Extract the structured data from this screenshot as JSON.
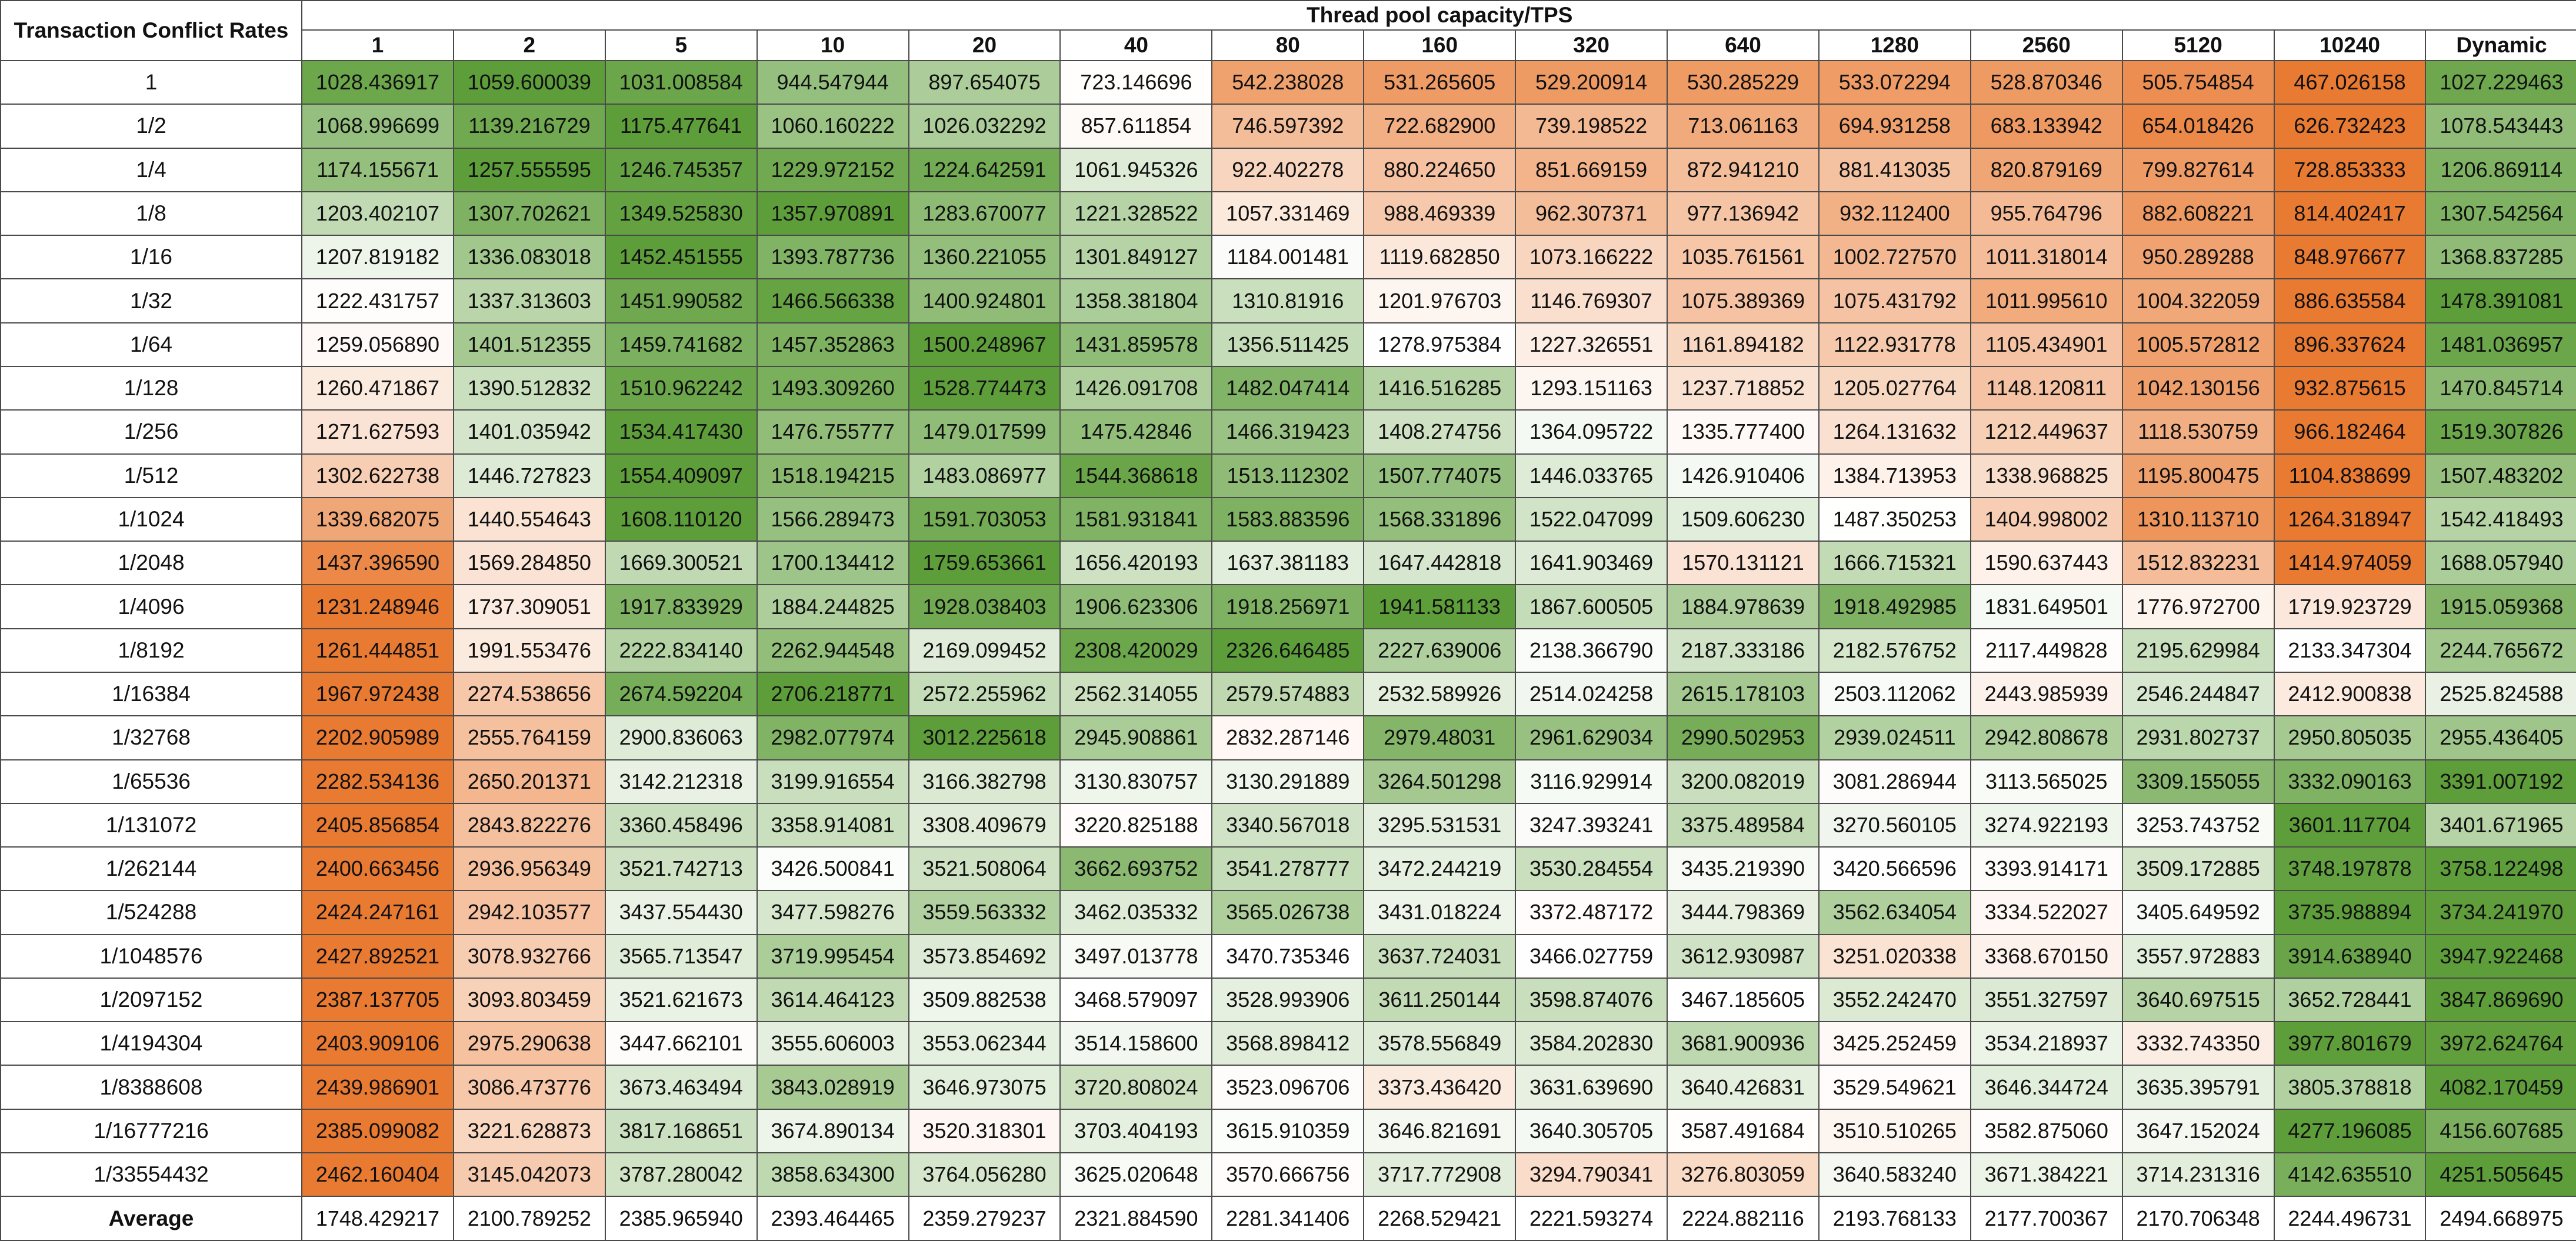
{
  "chart_data": {
    "type": "heatmap",
    "title": "",
    "row_header": "Transaction Conflict Rates",
    "col_header": "Thread pool capacity/TPS",
    "columns": [
      "1",
      "2",
      "5",
      "10",
      "20",
      "40",
      "80",
      "160",
      "320",
      "640",
      "1280",
      "2560",
      "5120",
      "10240",
      "Dynamic"
    ],
    "colors": {
      "green": "#5e9e3a",
      "orange": "#e97a32",
      "white": "#ffffff"
    },
    "rows": [
      {
        "label": "1",
        "values": [
          "1028.436917",
          "1059.600039",
          "1031.008584",
          "944.547944",
          "897.654075",
          "723.146696",
          "542.238028",
          "531.265605",
          "529.200914",
          "530.285229",
          "533.072294",
          "528.870346",
          "505.754854",
          "467.026158",
          "1027.229463"
        ]
      },
      {
        "label": "1/2",
        "values": [
          "1068.996699",
          "1139.216729",
          "1175.477641",
          "1060.160222",
          "1026.032292",
          "857.611854",
          "746.597392",
          "722.682900",
          "739.198522",
          "713.061163",
          "694.931258",
          "683.133942",
          "654.018426",
          "626.732423",
          "1078.543443"
        ]
      },
      {
        "label": "1/4",
        "values": [
          "1174.155671",
          "1257.555595",
          "1246.745357",
          "1229.972152",
          "1224.642591",
          "1061.945326",
          "922.402278",
          "880.224650",
          "851.669159",
          "872.941210",
          "881.413035",
          "820.879169",
          "799.827614",
          "728.853333",
          "1206.869114"
        ]
      },
      {
        "label": "1/8",
        "values": [
          "1203.402107",
          "1307.702621",
          "1349.525830",
          "1357.970891",
          "1283.670077",
          "1221.328522",
          "1057.331469",
          "988.469339",
          "962.307371",
          "977.136942",
          "932.112400",
          "955.764796",
          "882.608221",
          "814.402417",
          "1307.542564"
        ]
      },
      {
        "label": "1/16",
        "values": [
          "1207.819182",
          "1336.083018",
          "1452.451555",
          "1393.787736",
          "1360.221055",
          "1301.849127",
          "1184.001481",
          "1119.682850",
          "1073.166222",
          "1035.761561",
          "1002.727570",
          "1011.318014",
          "950.289288",
          "848.976677",
          "1368.837285"
        ]
      },
      {
        "label": "1/32",
        "values": [
          "1222.431757",
          "1337.313603",
          "1451.990582",
          "1466.566338",
          "1400.924801",
          "1358.381804",
          "1310.81916",
          "1201.976703",
          "1146.769307",
          "1075.389369",
          "1075.431792",
          "1011.995610",
          "1004.322059",
          "886.635584",
          "1478.391081"
        ]
      },
      {
        "label": "1/64",
        "values": [
          "1259.056890",
          "1401.512355",
          "1459.741682",
          "1457.352863",
          "1500.248967",
          "1431.859578",
          "1356.511425",
          "1278.975384",
          "1227.326551",
          "1161.894182",
          "1122.931778",
          "1105.434901",
          "1005.572812",
          "896.337624",
          "1481.036957"
        ]
      },
      {
        "label": "1/128",
        "values": [
          "1260.471867",
          "1390.512832",
          "1510.962242",
          "1493.309260",
          "1528.774473",
          "1426.091708",
          "1482.047414",
          "1416.516285",
          "1293.151163",
          "1237.718852",
          "1205.027764",
          "1148.120811",
          "1042.130156",
          "932.875615",
          "1470.845714"
        ]
      },
      {
        "label": "1/256",
        "values": [
          "1271.627593",
          "1401.035942",
          "1534.417430",
          "1476.755777",
          "1479.017599",
          "1475.42846",
          "1466.319423",
          "1408.274756",
          "1364.095722",
          "1335.777400",
          "1264.131632",
          "1212.449637",
          "1118.530759",
          "966.182464",
          "1519.307826"
        ]
      },
      {
        "label": "1/512",
        "values": [
          "1302.622738",
          "1446.727823",
          "1554.409097",
          "1518.194215",
          "1483.086977",
          "1544.368618",
          "1513.112302",
          "1507.774075",
          "1446.033765",
          "1426.910406",
          "1384.713953",
          "1338.968825",
          "1195.800475",
          "1104.838699",
          "1507.483202"
        ]
      },
      {
        "label": "1/1024",
        "values": [
          "1339.682075",
          "1440.554643",
          "1608.110120",
          "1566.289473",
          "1591.703053",
          "1581.931841",
          "1583.883596",
          "1568.331896",
          "1522.047099",
          "1509.606230",
          "1487.350253",
          "1404.998002",
          "1310.113710",
          "1264.318947",
          "1542.418493"
        ]
      },
      {
        "label": "1/2048",
        "values": [
          "1437.396590",
          "1569.284850",
          "1669.300521",
          "1700.134412",
          "1759.653661",
          "1656.420193",
          "1637.381183",
          "1647.442818",
          "1641.903469",
          "1570.131121",
          "1666.715321",
          "1590.637443",
          "1512.832231",
          "1414.974059",
          "1688.057940"
        ]
      },
      {
        "label": "1/4096",
        "values": [
          "1231.248946",
          "1737.309051",
          "1917.833929",
          "1884.244825",
          "1928.038403",
          "1906.623306",
          "1918.256971",
          "1941.581133",
          "1867.600505",
          "1884.978639",
          "1918.492985",
          "1831.649501",
          "1776.972700",
          "1719.923729",
          "1915.059368"
        ]
      },
      {
        "label": "1/8192",
        "values": [
          "1261.444851",
          "1991.553476",
          "2222.834140",
          "2262.944548",
          "2169.099452",
          "2308.420029",
          "2326.646485",
          "2227.639006",
          "2138.366790",
          "2187.333186",
          "2182.576752",
          "2117.449828",
          "2195.629984",
          "2133.347304",
          "2244.765672"
        ]
      },
      {
        "label": "1/16384",
        "values": [
          "1967.972438",
          "2274.538656",
          "2674.592204",
          "2706.218771",
          "2572.255962",
          "2562.314055",
          "2579.574883",
          "2532.589926",
          "2514.024258",
          "2615.178103",
          "2503.112062",
          "2443.985939",
          "2546.244847",
          "2412.900838",
          "2525.824588"
        ]
      },
      {
        "label": "1/32768",
        "values": [
          "2202.905989",
          "2555.764159",
          "2900.836063",
          "2982.077974",
          "3012.225618",
          "2945.908861",
          "2832.287146",
          "2979.48031",
          "2961.629034",
          "2990.502953",
          "2939.024511",
          "2942.808678",
          "2931.802737",
          "2950.805035",
          "2955.436405"
        ]
      },
      {
        "label": "1/65536",
        "values": [
          "2282.534136",
          "2650.201371",
          "3142.212318",
          "3199.916554",
          "3166.382798",
          "3130.830757",
          "3130.291889",
          "3264.501298",
          "3116.929914",
          "3200.082019",
          "3081.286944",
          "3113.565025",
          "3309.155055",
          "3332.090163",
          "3391.007192"
        ]
      },
      {
        "label": "1/131072",
        "values": [
          "2405.856854",
          "2843.822276",
          "3360.458496",
          "3358.914081",
          "3308.409679",
          "3220.825188",
          "3340.567018",
          "3295.531531",
          "3247.393241",
          "3375.489584",
          "3270.560105",
          "3274.922193",
          "3253.743752",
          "3601.117704",
          "3401.671965"
        ]
      },
      {
        "label": "1/262144",
        "values": [
          "2400.663456",
          "2936.956349",
          "3521.742713",
          "3426.500841",
          "3521.508064",
          "3662.693752",
          "3541.278777",
          "3472.244219",
          "3530.284554",
          "3435.219390",
          "3420.566596",
          "3393.914171",
          "3509.172885",
          "3748.197878",
          "3758.122498"
        ]
      },
      {
        "label": "1/524288",
        "values": [
          "2424.247161",
          "2942.103577",
          "3437.554430",
          "3477.598276",
          "3559.563332",
          "3462.035332",
          "3565.026738",
          "3431.018224",
          "3372.487172",
          "3444.798369",
          "3562.634054",
          "3334.522027",
          "3405.649592",
          "3735.988894",
          "3734.241970"
        ]
      },
      {
        "label": "1/1048576",
        "values": [
          "2427.892521",
          "3078.932766",
          "3565.713547",
          "3719.995454",
          "3573.854692",
          "3497.013778",
          "3470.735346",
          "3637.724031",
          "3466.027759",
          "3612.930987",
          "3251.020338",
          "3368.670150",
          "3557.972883",
          "3914.638940",
          "3947.922468"
        ]
      },
      {
        "label": "1/2097152",
        "values": [
          "2387.137705",
          "3093.803459",
          "3521.621673",
          "3614.464123",
          "3509.882538",
          "3468.579097",
          "3528.993906",
          "3611.250144",
          "3598.874076",
          "3467.185605",
          "3552.242470",
          "3551.327597",
          "3640.697515",
          "3652.728441",
          "3847.869690"
        ]
      },
      {
        "label": "1/4194304",
        "values": [
          "2403.909106",
          "2975.290638",
          "3447.662101",
          "3555.606003",
          "3553.062344",
          "3514.158600",
          "3568.898412",
          "3578.556849",
          "3584.202830",
          "3681.900936",
          "3425.252459",
          "3534.218937",
          "3332.743350",
          "3977.801679",
          "3972.624764"
        ]
      },
      {
        "label": "1/8388608",
        "values": [
          "2439.986901",
          "3086.473776",
          "3673.463494",
          "3843.028919",
          "3646.973075",
          "3720.808024",
          "3523.096706",
          "3373.436420",
          "3631.639690",
          "3640.426831",
          "3529.549621",
          "3646.344724",
          "3635.395791",
          "3805.378818",
          "4082.170459"
        ]
      },
      {
        "label": "1/16777216",
        "values": [
          "2385.099082",
          "3221.628873",
          "3817.168651",
          "3674.890134",
          "3520.318301",
          "3703.404193",
          "3615.910359",
          "3646.821691",
          "3640.305705",
          "3587.491684",
          "3510.510265",
          "3582.875060",
          "3647.152024",
          "4277.196085",
          "4156.607685"
        ]
      },
      {
        "label": "1/33554432",
        "values": [
          "2462.160404",
          "3145.042073",
          "3787.280042",
          "3858.634300",
          "3764.056280",
          "3625.020648",
          "3570.666756",
          "3717.772908",
          "3294.790341",
          "3276.803059",
          "3640.583240",
          "3671.384221",
          "3714.231316",
          "4142.635510",
          "4251.505645"
        ]
      },
      {
        "label": "Average",
        "values": [
          "1748.429217",
          "2100.789252",
          "2385.965940",
          "2393.464465",
          "2359.279237",
          "2321.884590",
          "2281.341406",
          "2268.529421",
          "2221.593274",
          "2224.882116",
          "2193.768133",
          "2177.700367",
          "2170.706348",
          "2244.496731",
          "2494.668975"
        ]
      }
    ]
  }
}
